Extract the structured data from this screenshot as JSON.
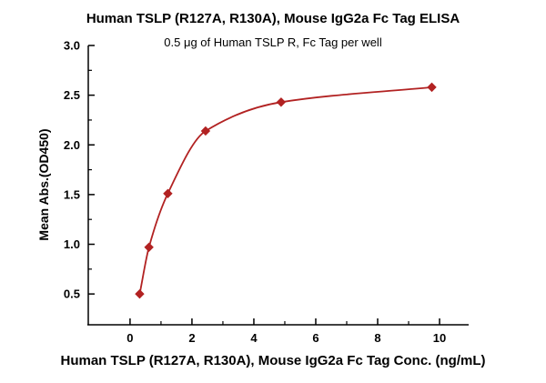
{
  "title": "Human TSLP (R127A, R130A), Mouse IgG2a Fc Tag ELISA",
  "subtitle": "0.5 μg of Human TSLP R, Fc Tag per well",
  "chart_data": {
    "type": "scatter",
    "title": "Human TSLP (R127A, R130A), Mouse IgG2a Fc Tag ELISA",
    "subtitle": "0.5 μg of Human TSLP R, Fc Tag per well",
    "xlabel": "Human TSLP (R127A, R130A), Mouse IgG2a Fc Tag Conc. (ng/mL)",
    "ylabel": "Mean Abs.(OD450)",
    "x": [
      0.31,
      0.61,
      1.22,
      2.44,
      4.88,
      9.75
    ],
    "y": [
      0.5,
      0.97,
      1.51,
      2.14,
      2.43,
      2.58
    ],
    "xticks": [
      0,
      2,
      4,
      6,
      8,
      10
    ],
    "xticks_minor": [
      1,
      3,
      5,
      7,
      9
    ],
    "yticks": [
      0.5,
      1.0,
      1.5,
      2.0,
      2.5,
      3.0
    ],
    "yticks_minor": [
      0.75,
      1.25,
      1.75,
      2.25,
      2.75
    ],
    "xlim": [
      -1.35,
      10.94
    ],
    "ylim": [
      0.19,
      3.0
    ],
    "grid": false,
    "legend": "none",
    "line_color": "#b22222",
    "marker_color": "#b22222",
    "marker_shape": "diamond",
    "axis_color": "#000000"
  }
}
